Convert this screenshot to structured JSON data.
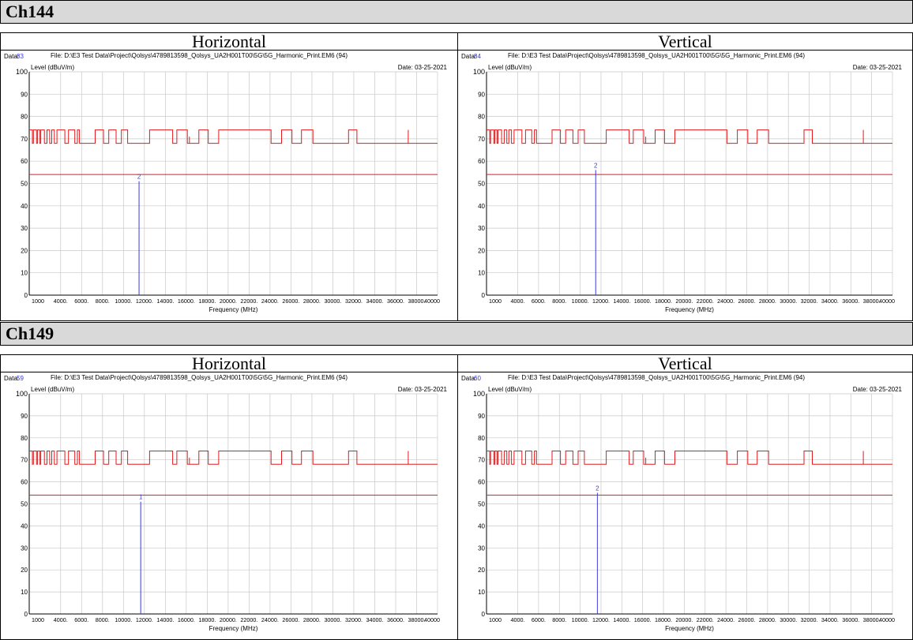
{
  "sections": [
    {
      "title": "Ch144",
      "panels": [
        {
          "polarization": "Horizontal",
          "data_label": "Data:",
          "data_num": "83",
          "file": "File: D:\\E3 Test Data\\Project\\Qolsys\\4789813598_Qolsys_UA2H001T00\\5G\\5G_Harmonic_Print.EM6  (94)",
          "date": "Date: 03-25-2021",
          "marker_label": "2",
          "marker_freq": 11490,
          "marker_level": 51
        },
        {
          "polarization": "Vertical",
          "data_label": "Data:",
          "data_num": "84",
          "file": "File: D:\\E3 Test Data\\Project\\Qolsys\\4789813598_Qolsys_UA2H001T00\\5G\\5G_Harmonic_Print.EM6  (94)",
          "date": "Date: 03-25-2021",
          "marker_label": "2",
          "marker_freq": 11490,
          "marker_level": 56
        }
      ]
    },
    {
      "title": "Ch149",
      "panels": [
        {
          "polarization": "Horizontal",
          "data_label": "Data:",
          "data_num": "59",
          "file": "File: D:\\E3 Test Data\\Project\\Qolsys\\4789813598_Qolsys_UA2H001T00\\5G\\5G_Harmonic_Print.EM6  (94)",
          "date": "Date: 03-25-2021",
          "marker_label": "1",
          "marker_freq": 11650,
          "marker_level": 51
        },
        {
          "polarization": "Vertical",
          "data_label": "Data:",
          "data_num": "60",
          "file": "File: D:\\E3 Test Data\\Project\\Qolsys\\4789813598_Qolsys_UA2H001T00\\5G\\5G_Harmonic_Print.EM6  (94)",
          "date": "Date: 03-25-2021",
          "marker_label": "2",
          "marker_freq": 11650,
          "marker_level": 55
        }
      ]
    }
  ],
  "colors": {
    "limit": "#e31a1c",
    "marker": "#3b3bdc",
    "data_num": "#3b3bdc",
    "grid": "#c8c8c8",
    "header_bg": "#d9d9d9"
  },
  "chart_data": {
    "type": "line",
    "xlabel": "Frequency (MHz)",
    "ylabel": "Level (dBuV/m)",
    "xlim": [
      1000,
      40000
    ],
    "ylim": [
      0,
      100
    ],
    "x_ticks": [
      "1000",
      "4000.",
      "6000.",
      "8000.",
      "10000.",
      "12000.",
      "14000.",
      "16000.",
      "18000.",
      "20000.",
      "22000.",
      "24000.",
      "26000.",
      "28000.",
      "30000.",
      "32000.",
      "34000.",
      "36000.",
      "38000.",
      "40000"
    ],
    "y_ticks": [
      "0",
      "10",
      "20",
      "30",
      "40",
      "50",
      "60",
      "70",
      "80",
      "90",
      "100"
    ],
    "average_limit": 54,
    "peak_limit_line": [
      [
        1000,
        74
      ],
      [
        1300,
        74
      ],
      [
        1300,
        68
      ],
      [
        1400,
        68
      ],
      [
        1400,
        74
      ],
      [
        1700,
        74
      ],
      [
        1700,
        68
      ],
      [
        1800,
        68
      ],
      [
        1800,
        74
      ],
      [
        2000,
        74
      ],
      [
        2000,
        68
      ],
      [
        2100,
        68
      ],
      [
        2100,
        74
      ],
      [
        2450,
        74
      ],
      [
        2450,
        68
      ],
      [
        2700,
        68
      ],
      [
        2700,
        74
      ],
      [
        2950,
        74
      ],
      [
        2950,
        68
      ],
      [
        3150,
        68
      ],
      [
        3150,
        74
      ],
      [
        3400,
        74
      ],
      [
        3400,
        68
      ],
      [
        3650,
        68
      ],
      [
        3650,
        74
      ],
      [
        4400,
        74
      ],
      [
        4400,
        68
      ],
      [
        4750,
        68
      ],
      [
        4750,
        74
      ],
      [
        5350,
        74
      ],
      [
        5350,
        68
      ],
      [
        5600,
        68
      ],
      [
        5600,
        74
      ],
      [
        5800,
        74
      ],
      [
        5800,
        68
      ],
      [
        7300,
        68
      ],
      [
        7300,
        74
      ],
      [
        8100,
        74
      ],
      [
        8100,
        68
      ],
      [
        8600,
        68
      ],
      [
        8600,
        74
      ],
      [
        9300,
        74
      ],
      [
        9300,
        68
      ],
      [
        9800,
        68
      ],
      [
        9800,
        74
      ],
      [
        10400,
        74
      ],
      [
        10400,
        68
      ],
      [
        12500,
        68
      ],
      [
        12500,
        74
      ],
      [
        14700,
        74
      ],
      [
        14700,
        68
      ],
      [
        15100,
        68
      ],
      [
        15100,
        74
      ],
      [
        16100,
        74
      ],
      [
        16100,
        68
      ],
      [
        16300,
        68
      ],
      [
        16300,
        71
      ],
      [
        16300,
        68
      ],
      [
        17200,
        68
      ],
      [
        17200,
        74
      ],
      [
        18100,
        74
      ],
      [
        18100,
        68
      ],
      [
        19100,
        68
      ],
      [
        19100,
        74
      ],
      [
        24100,
        74
      ],
      [
        24100,
        68
      ],
      [
        25100,
        68
      ],
      [
        25100,
        74
      ],
      [
        26100,
        74
      ],
      [
        26100,
        68
      ],
      [
        27000,
        68
      ],
      [
        27000,
        74
      ],
      [
        28100,
        74
      ],
      [
        28100,
        68
      ],
      [
        31500,
        68
      ],
      [
        31500,
        74
      ],
      [
        32300,
        74
      ],
      [
        32300,
        68
      ],
      [
        37200,
        68
      ],
      [
        37200,
        74
      ],
      [
        37200,
        68
      ],
      [
        40000,
        68
      ]
    ]
  }
}
